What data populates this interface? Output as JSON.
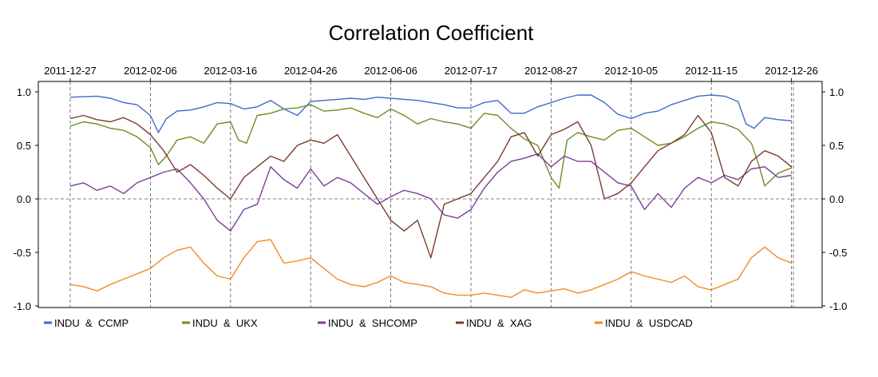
{
  "chart_data": {
    "type": "line",
    "title": "Correlation Coefficient",
    "xlabel": "",
    "ylabel": "",
    "ylim": [
      -1.0,
      1.0
    ],
    "y_ticks": [
      "1.0",
      "0.5",
      "0.0",
      "-0.5",
      "-1.0"
    ],
    "y_tick_values": [
      1.0,
      0.5,
      0.0,
      -0.5,
      -1.0
    ],
    "date_ticks": [
      "2011-12-27",
      "2012-02-06",
      "2012-03-16",
      "2012-04-26",
      "2012-06-06",
      "2012-07-17",
      "2012-08-27",
      "2012-10-05",
      "2012-11-15",
      "2012-12-26"
    ],
    "legend_position": "bottom",
    "grid": "dashed vertical lines at date ticks, dashed horizontal line at 0",
    "series": [
      {
        "name": "INDU  &  CCMP",
        "color": "#4169c8",
        "points": [
          [
            0,
            0.95
          ],
          [
            1,
            0.96
          ],
          [
            1.5,
            0.94
          ],
          [
            2,
            0.9
          ],
          [
            2.5,
            0.88
          ],
          [
            3,
            0.78
          ],
          [
            3.3,
            0.62
          ],
          [
            3.6,
            0.75
          ],
          [
            4,
            0.82
          ],
          [
            4.5,
            0.83
          ],
          [
            5,
            0.86
          ],
          [
            5.5,
            0.9
          ],
          [
            6,
            0.89
          ],
          [
            6.5,
            0.84
          ],
          [
            7,
            0.86
          ],
          [
            7.5,
            0.92
          ],
          [
            8,
            0.84
          ],
          [
            8.5,
            0.78
          ],
          [
            9,
            0.91
          ],
          [
            9.5,
            0.92
          ],
          [
            10,
            0.93
          ],
          [
            10.5,
            0.94
          ],
          [
            11,
            0.93
          ],
          [
            11.5,
            0.95
          ],
          [
            12,
            0.94
          ],
          [
            12.5,
            0.93
          ],
          [
            13,
            0.92
          ],
          [
            13.5,
            0.9
          ],
          [
            14,
            0.88
          ],
          [
            14.5,
            0.85
          ],
          [
            15,
            0.85
          ],
          [
            15.5,
            0.9
          ],
          [
            16,
            0.92
          ],
          [
            16.5,
            0.8
          ],
          [
            17,
            0.8
          ],
          [
            17.5,
            0.86
          ],
          [
            18,
            0.9
          ],
          [
            18.5,
            0.94
          ],
          [
            19,
            0.97
          ],
          [
            19.5,
            0.97
          ],
          [
            20,
            0.9
          ],
          [
            20.5,
            0.79
          ],
          [
            21,
            0.75
          ],
          [
            21.5,
            0.8
          ],
          [
            22,
            0.82
          ],
          [
            22.5,
            0.88
          ],
          [
            23,
            0.92
          ],
          [
            23.5,
            0.96
          ],
          [
            24,
            0.97
          ],
          [
            24.5,
            0.96
          ],
          [
            25,
            0.91
          ],
          [
            25.3,
            0.7
          ],
          [
            25.6,
            0.66
          ],
          [
            26,
            0.76
          ],
          [
            26.5,
            0.74
          ],
          [
            27,
            0.73
          ]
        ]
      },
      {
        "name": "INDU  &  UKX",
        "color": "#6b8e23",
        "points": [
          [
            0,
            0.68
          ],
          [
            0.5,
            0.72
          ],
          [
            1,
            0.7
          ],
          [
            1.5,
            0.66
          ],
          [
            2,
            0.64
          ],
          [
            2.5,
            0.58
          ],
          [
            3,
            0.48
          ],
          [
            3.3,
            0.32
          ],
          [
            3.6,
            0.4
          ],
          [
            4,
            0.55
          ],
          [
            4.5,
            0.58
          ],
          [
            5,
            0.52
          ],
          [
            5.5,
            0.7
          ],
          [
            6,
            0.72
          ],
          [
            6.3,
            0.55
          ],
          [
            6.6,
            0.52
          ],
          [
            7,
            0.78
          ],
          [
            7.5,
            0.8
          ],
          [
            8,
            0.84
          ],
          [
            8.5,
            0.85
          ],
          [
            9,
            0.88
          ],
          [
            9.5,
            0.82
          ],
          [
            10,
            0.83
          ],
          [
            10.5,
            0.85
          ],
          [
            11,
            0.8
          ],
          [
            11.5,
            0.76
          ],
          [
            12,
            0.84
          ],
          [
            12.5,
            0.78
          ],
          [
            13,
            0.7
          ],
          [
            13.5,
            0.75
          ],
          [
            14,
            0.72
          ],
          [
            14.5,
            0.7
          ],
          [
            15,
            0.66
          ],
          [
            15.5,
            0.8
          ],
          [
            16,
            0.78
          ],
          [
            16.5,
            0.66
          ],
          [
            17,
            0.56
          ],
          [
            17.5,
            0.5
          ],
          [
            18,
            0.2
          ],
          [
            18.3,
            0.1
          ],
          [
            18.6,
            0.55
          ],
          [
            19,
            0.62
          ],
          [
            19.5,
            0.58
          ],
          [
            20,
            0.55
          ],
          [
            20.5,
            0.64
          ],
          [
            21,
            0.66
          ],
          [
            21.5,
            0.58
          ],
          [
            22,
            0.5
          ],
          [
            22.5,
            0.52
          ],
          [
            23,
            0.58
          ],
          [
            23.5,
            0.66
          ],
          [
            24,
            0.72
          ],
          [
            24.5,
            0.7
          ],
          [
            25,
            0.65
          ],
          [
            25.5,
            0.52
          ],
          [
            25.8,
            0.3
          ],
          [
            26,
            0.12
          ],
          [
            26.5,
            0.24
          ],
          [
            27,
            0.29
          ]
        ]
      },
      {
        "name": "INDU  &  SHCOMP",
        "color": "#7b3f98",
        "points": [
          [
            0,
            0.12
          ],
          [
            0.5,
            0.15
          ],
          [
            1,
            0.08
          ],
          [
            1.5,
            0.12
          ],
          [
            2,
            0.05
          ],
          [
            2.5,
            0.15
          ],
          [
            3,
            0.2
          ],
          [
            3.5,
            0.25
          ],
          [
            4,
            0.28
          ],
          [
            4.5,
            0.15
          ],
          [
            5,
            0.0
          ],
          [
            5.5,
            -0.2
          ],
          [
            6,
            -0.3
          ],
          [
            6.5,
            -0.1
          ],
          [
            7,
            -0.05
          ],
          [
            7.5,
            0.3
          ],
          [
            8,
            0.18
          ],
          [
            8.5,
            0.1
          ],
          [
            9,
            0.28
          ],
          [
            9.5,
            0.12
          ],
          [
            10,
            0.2
          ],
          [
            10.5,
            0.15
          ],
          [
            11,
            0.05
          ],
          [
            11.5,
            -0.05
          ],
          [
            12,
            0.02
          ],
          [
            12.5,
            0.08
          ],
          [
            13,
            0.05
          ],
          [
            13.5,
            0.0
          ],
          [
            14,
            -0.15
          ],
          [
            14.5,
            -0.18
          ],
          [
            15,
            -0.1
          ],
          [
            15.5,
            0.1
          ],
          [
            16,
            0.25
          ],
          [
            16.5,
            0.35
          ],
          [
            17,
            0.38
          ],
          [
            17.5,
            0.42
          ],
          [
            18,
            0.3
          ],
          [
            18.5,
            0.4
          ],
          [
            19,
            0.35
          ],
          [
            19.5,
            0.35
          ],
          [
            20,
            0.25
          ],
          [
            20.5,
            0.15
          ],
          [
            21,
            0.12
          ],
          [
            21.5,
            -0.1
          ],
          [
            22,
            0.05
          ],
          [
            22.5,
            -0.08
          ],
          [
            23,
            0.1
          ],
          [
            23.5,
            0.2
          ],
          [
            24,
            0.15
          ],
          [
            24.5,
            0.22
          ],
          [
            25,
            0.18
          ],
          [
            25.5,
            0.28
          ],
          [
            26,
            0.3
          ],
          [
            26.5,
            0.2
          ],
          [
            27,
            0.22
          ]
        ]
      },
      {
        "name": "INDU  &  XAG",
        "color": "#7a3b2e",
        "points": [
          [
            0,
            0.75
          ],
          [
            0.5,
            0.78
          ],
          [
            1,
            0.74
          ],
          [
            1.5,
            0.72
          ],
          [
            2,
            0.76
          ],
          [
            2.5,
            0.7
          ],
          [
            3,
            0.6
          ],
          [
            3.5,
            0.45
          ],
          [
            4,
            0.25
          ],
          [
            4.5,
            0.32
          ],
          [
            5,
            0.22
          ],
          [
            5.5,
            0.1
          ],
          [
            6,
            0.0
          ],
          [
            6.5,
            0.2
          ],
          [
            7,
            0.3
          ],
          [
            7.5,
            0.4
          ],
          [
            8,
            0.35
          ],
          [
            8.5,
            0.5
          ],
          [
            9,
            0.55
          ],
          [
            9.5,
            0.52
          ],
          [
            10,
            0.6
          ],
          [
            10.5,
            0.4
          ],
          [
            11,
            0.2
          ],
          [
            11.5,
            0.0
          ],
          [
            12,
            -0.2
          ],
          [
            12.5,
            -0.3
          ],
          [
            13,
            -0.2
          ],
          [
            13.5,
            -0.55
          ],
          [
            14,
            -0.05
          ],
          [
            14.5,
            0.0
          ],
          [
            15,
            0.05
          ],
          [
            15.5,
            0.2
          ],
          [
            16,
            0.35
          ],
          [
            16.5,
            0.58
          ],
          [
            17,
            0.62
          ],
          [
            17.5,
            0.4
          ],
          [
            18,
            0.6
          ],
          [
            18.5,
            0.65
          ],
          [
            19,
            0.72
          ],
          [
            19.5,
            0.5
          ],
          [
            20,
            0.0
          ],
          [
            20.5,
            0.05
          ],
          [
            21,
            0.15
          ],
          [
            21.5,
            0.3
          ],
          [
            22,
            0.45
          ],
          [
            22.5,
            0.52
          ],
          [
            23,
            0.6
          ],
          [
            23.5,
            0.78
          ],
          [
            24,
            0.62
          ],
          [
            24.5,
            0.2
          ],
          [
            25,
            0.12
          ],
          [
            25.5,
            0.35
          ],
          [
            26,
            0.45
          ],
          [
            26.5,
            0.4
          ],
          [
            27,
            0.3
          ]
        ]
      },
      {
        "name": "INDU  &  USDCAD",
        "color": "#f08c1e",
        "points": [
          [
            0,
            -0.8
          ],
          [
            0.5,
            -0.82
          ],
          [
            1,
            -0.86
          ],
          [
            1.5,
            -0.8
          ],
          [
            2,
            -0.75
          ],
          [
            2.5,
            -0.7
          ],
          [
            3,
            -0.65
          ],
          [
            3.5,
            -0.55
          ],
          [
            4,
            -0.48
          ],
          [
            4.5,
            -0.45
          ],
          [
            5,
            -0.6
          ],
          [
            5.5,
            -0.72
          ],
          [
            6,
            -0.75
          ],
          [
            6.5,
            -0.55
          ],
          [
            7,
            -0.4
          ],
          [
            7.5,
            -0.38
          ],
          [
            8,
            -0.6
          ],
          [
            8.5,
            -0.58
          ],
          [
            9,
            -0.55
          ],
          [
            9.5,
            -0.65
          ],
          [
            10,
            -0.75
          ],
          [
            10.5,
            -0.8
          ],
          [
            11,
            -0.82
          ],
          [
            11.5,
            -0.78
          ],
          [
            12,
            -0.72
          ],
          [
            12.5,
            -0.78
          ],
          [
            13,
            -0.8
          ],
          [
            13.5,
            -0.82
          ],
          [
            14,
            -0.88
          ],
          [
            14.5,
            -0.9
          ],
          [
            15,
            -0.9
          ],
          [
            15.5,
            -0.88
          ],
          [
            16,
            -0.9
          ],
          [
            16.5,
            -0.92
          ],
          [
            17,
            -0.85
          ],
          [
            17.5,
            -0.88
          ],
          [
            18,
            -0.86
          ],
          [
            18.5,
            -0.84
          ],
          [
            19,
            -0.88
          ],
          [
            19.5,
            -0.85
          ],
          [
            20,
            -0.8
          ],
          [
            20.5,
            -0.75
          ],
          [
            21,
            -0.68
          ],
          [
            21.5,
            -0.72
          ],
          [
            22,
            -0.75
          ],
          [
            22.5,
            -0.78
          ],
          [
            23,
            -0.72
          ],
          [
            23.5,
            -0.82
          ],
          [
            24,
            -0.85
          ],
          [
            24.5,
            -0.8
          ],
          [
            25,
            -0.75
          ],
          [
            25.5,
            -0.55
          ],
          [
            26,
            -0.45
          ],
          [
            26.5,
            -0.55
          ],
          [
            27,
            -0.6
          ]
        ]
      }
    ]
  }
}
